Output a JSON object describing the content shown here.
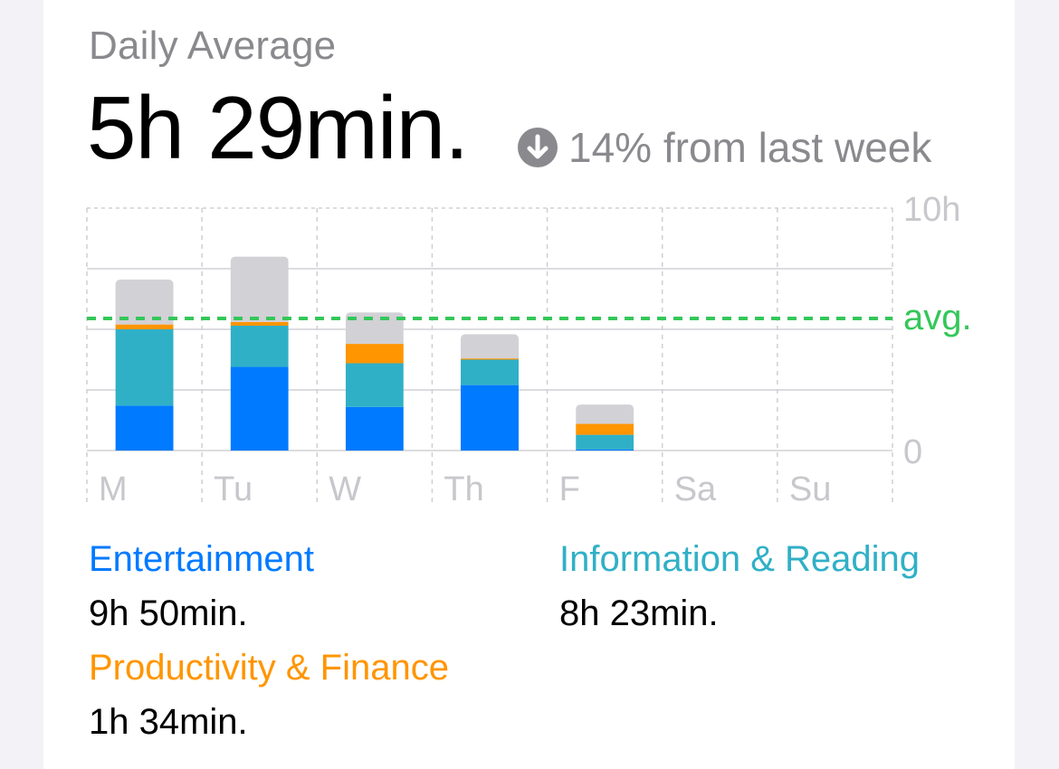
{
  "header": {
    "title": "Daily Average",
    "value": "5h 29min.",
    "change_text": "14% from last week",
    "change_icon": "arrow-down-circle-icon"
  },
  "chart_data": {
    "type": "bar",
    "stacked": true,
    "categories": [
      "M",
      "Tu",
      "W",
      "Th",
      "F",
      "Sa",
      "Su"
    ],
    "y_unit": "hours",
    "ylim": [
      0,
      10
    ],
    "y_tick_labels": [
      "10h",
      "0"
    ],
    "average_label": "avg.",
    "average_value": 5.45,
    "grid": true,
    "series": [
      {
        "color": "#007aff",
        "values": [
          1.85,
          3.45,
          1.8,
          2.7,
          0.05,
          0,
          0
        ]
      },
      {
        "color": "#30b0c7",
        "values": [
          3.15,
          1.7,
          1.8,
          1.05,
          0.6,
          0,
          0
        ]
      },
      {
        "color": "#ff9500",
        "values": [
          0.2,
          0.15,
          0.8,
          0.05,
          0.45,
          0,
          0
        ]
      },
      {
        "color": "#d1d1d6",
        "values": [
          1.85,
          2.7,
          1.3,
          1.0,
          0.8,
          0,
          0
        ]
      }
    ]
  },
  "legend": {
    "entertainment": {
      "label": "Entertainment",
      "value": "9h 50min.",
      "color": "#007aff"
    },
    "information": {
      "label": "Information & Reading",
      "value": "8h 23min.",
      "color": "#30b0c7"
    },
    "productivity": {
      "label": "Productivity & Finance",
      "value": "1h 34min.",
      "color": "#ff9500"
    }
  }
}
